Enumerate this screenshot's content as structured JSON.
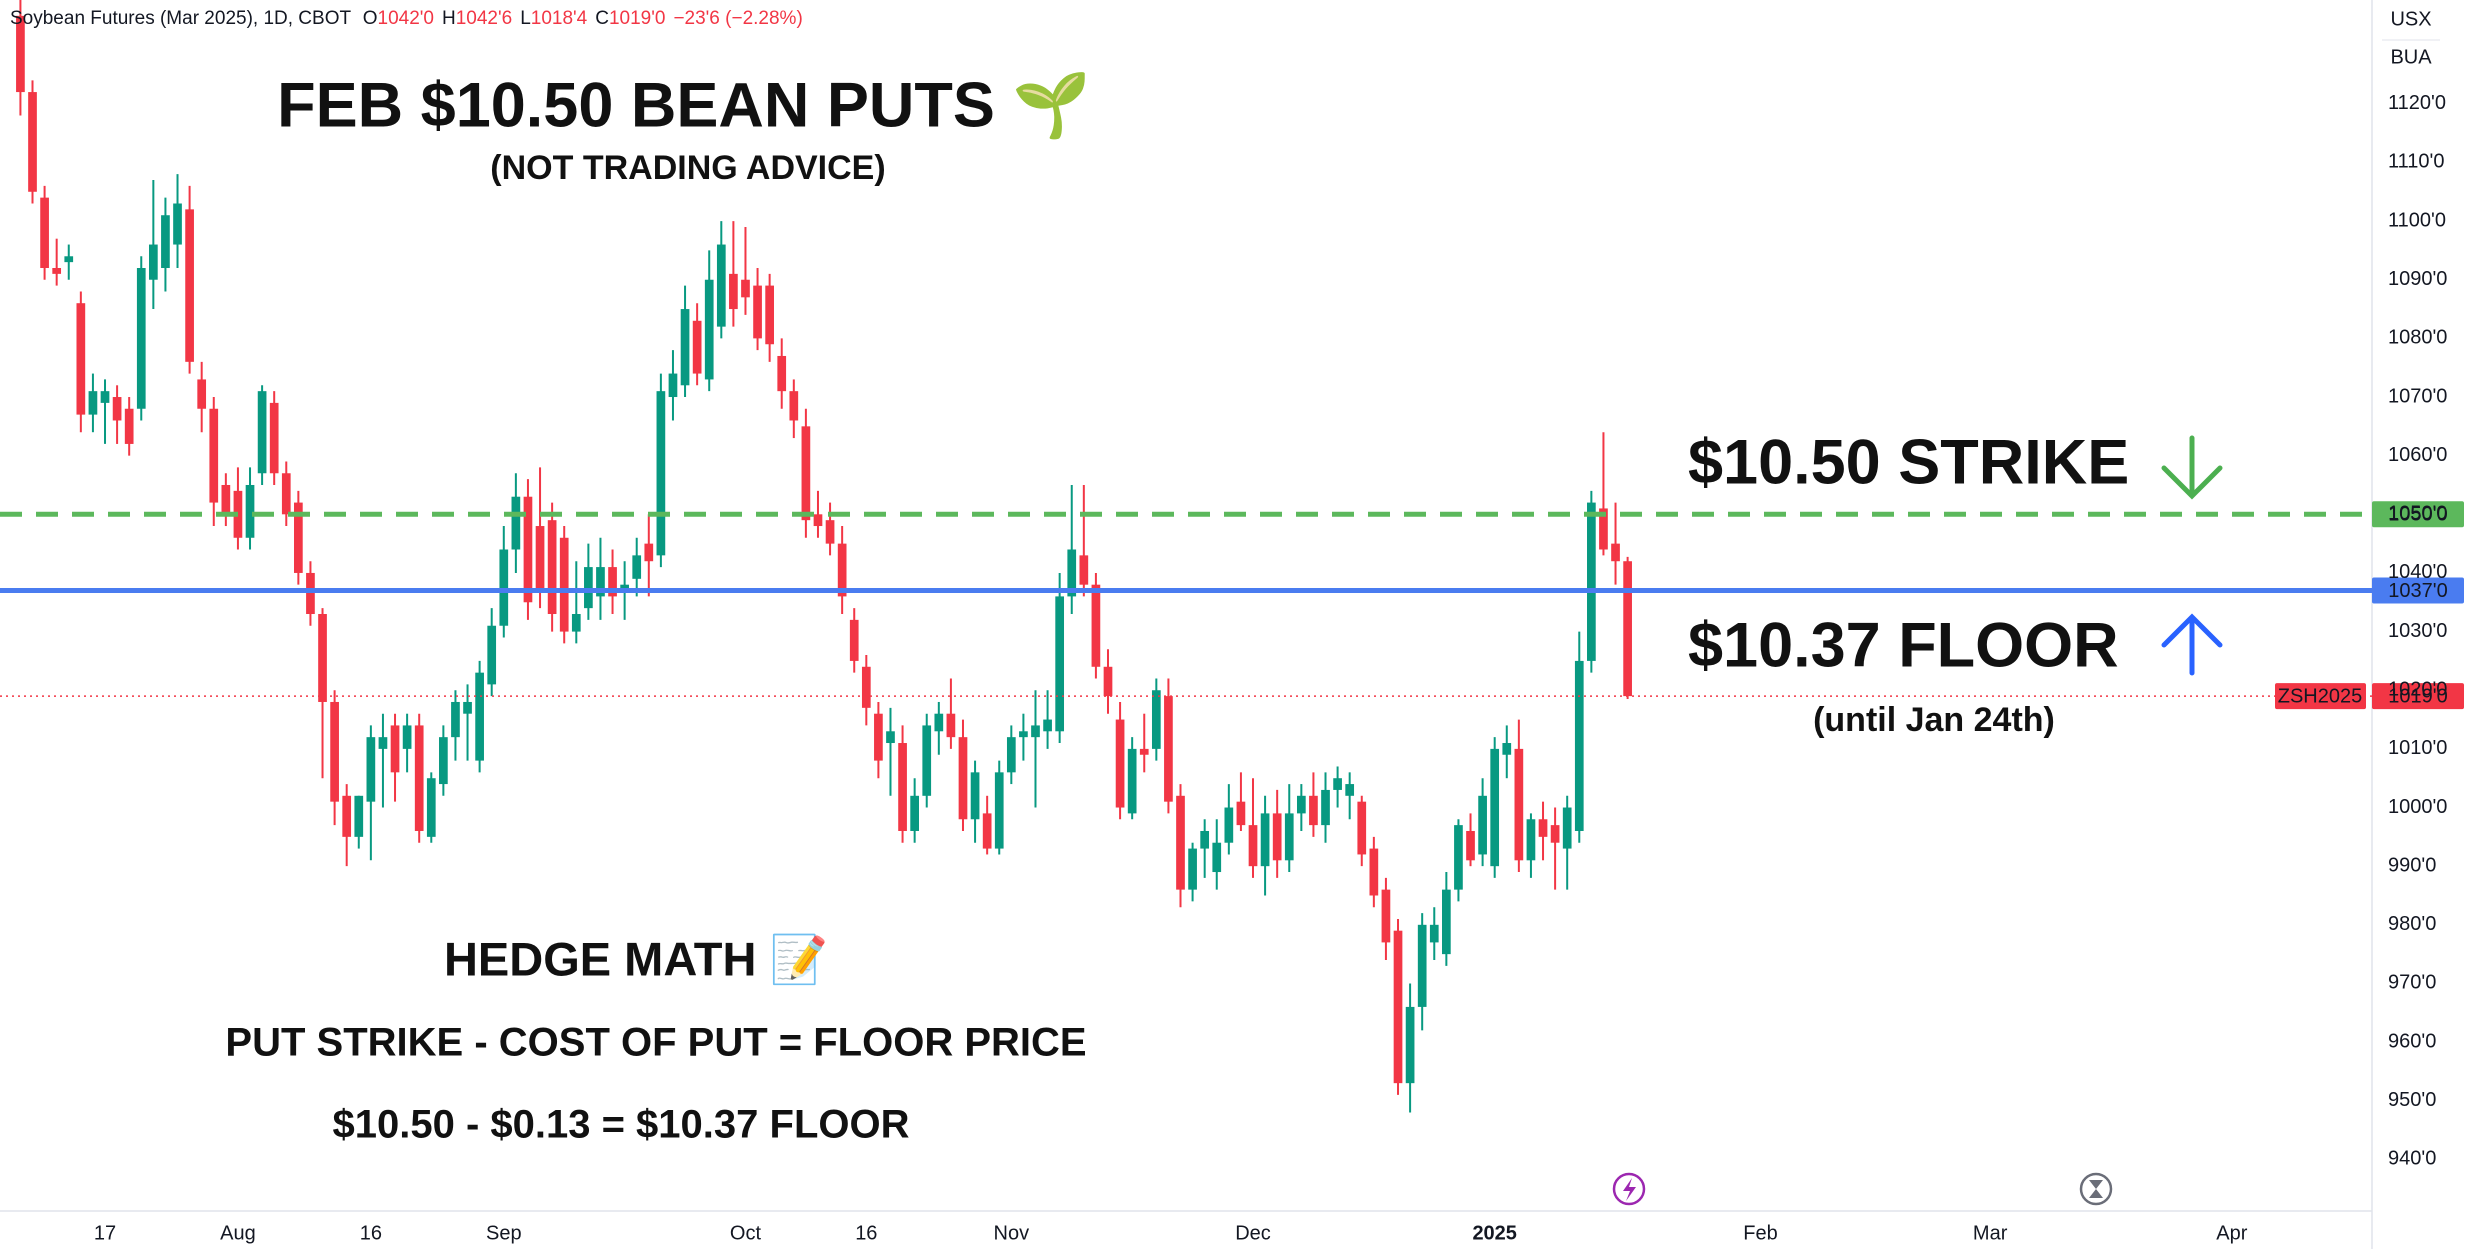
{
  "chart_data": {
    "type": "candlestick",
    "title": "Soybean Futures (Mar 2025), 1D, CBOT",
    "header": [
      {
        "label": "O",
        "value": "1042'0"
      },
      {
        "label": "H",
        "value": "1042'6"
      },
      {
        "label": "L",
        "value": "1018'4"
      },
      {
        "label": "C",
        "value": "1019'0"
      }
    ],
    "change": "−23'6 (−2.28%)",
    "currency": "USX",
    "unit": "BUA",
    "up_color": "#089981",
    "down_color": "#f23645",
    "ylim": [
      931.2,
      1137.7
    ],
    "yticks": [
      {
        "value": 940,
        "label": "940'0"
      },
      {
        "value": 950,
        "label": "950'0"
      },
      {
        "value": 960,
        "label": "960'0"
      },
      {
        "value": 970,
        "label": "970'0"
      },
      {
        "value": 980,
        "label": "980'0"
      },
      {
        "value": 990,
        "label": "990'0"
      },
      {
        "value": 1000,
        "label": "1000'0"
      },
      {
        "value": 1010,
        "label": "1010'0"
      },
      {
        "value": 1020,
        "label": "1020'0"
      },
      {
        "value": 1030,
        "label": "1030'0"
      },
      {
        "value": 1040,
        "label": "1040'0"
      },
      {
        "value": 1050,
        "label": "1050'0"
      },
      {
        "value": 1060,
        "label": "1060'0"
      },
      {
        "value": 1070,
        "label": "1070'0"
      },
      {
        "value": 1080,
        "label": "1080'0"
      },
      {
        "value": 1090,
        "label": "1090'0"
      },
      {
        "value": 1100,
        "label": "1100'0"
      },
      {
        "value": 1110,
        "label": "1110'0"
      },
      {
        "value": 1120,
        "label": "1120'0"
      }
    ],
    "xlim": [
      -1.69,
      194.6
    ],
    "xticks": [
      {
        "value": 7,
        "label": "17"
      },
      {
        "value": 18,
        "label": "Aug"
      },
      {
        "value": 29,
        "label": "16"
      },
      {
        "value": 40,
        "label": "Sep"
      },
      {
        "value": 60,
        "label": "Oct"
      },
      {
        "value": 70,
        "label": "16"
      },
      {
        "value": 82,
        "label": "Nov"
      },
      {
        "value": 102,
        "label": "Dec"
      },
      {
        "value": 122,
        "label": "2025"
      },
      {
        "value": 144,
        "label": "Feb"
      },
      {
        "value": 163,
        "label": "Mar"
      },
      {
        "value": 183,
        "label": "Apr"
      }
    ],
    "ohlc": [
      [
        1135,
        1140,
        1118,
        1122
      ],
      [
        1122,
        1124,
        1103,
        1105
      ],
      [
        1104,
        1106,
        1090,
        1092
      ],
      [
        1092,
        1097,
        1089,
        1091
      ],
      [
        1093,
        1096,
        1090,
        1094
      ],
      [
        1086,
        1088,
        1064,
        1067
      ],
      [
        1067,
        1074,
        1064,
        1071
      ],
      [
        1069,
        1073,
        1062,
        1071
      ],
      [
        1070,
        1072,
        1062,
        1066
      ],
      [
        1068,
        1070,
        1060,
        1062
      ],
      [
        1068,
        1094,
        1066,
        1092
      ],
      [
        1090,
        1107,
        1085,
        1096
      ],
      [
        1092,
        1104,
        1088,
        1101
      ],
      [
        1096,
        1108,
        1092,
        1103
      ],
      [
        1102,
        1106,
        1074,
        1076
      ],
      [
        1073,
        1076,
        1064,
        1068
      ],
      [
        1068,
        1070,
        1048,
        1052
      ],
      [
        1055,
        1057,
        1048,
        1050
      ],
      [
        1054,
        1058,
        1044,
        1046
      ],
      [
        1046,
        1058,
        1044,
        1055
      ],
      [
        1057,
        1072,
        1055,
        1071
      ],
      [
        1069,
        1071,
        1055,
        1057
      ],
      [
        1057,
        1059,
        1048,
        1050
      ],
      [
        1052,
        1054,
        1038,
        1040
      ],
      [
        1040,
        1042,
        1031,
        1033
      ],
      [
        1033,
        1034,
        1005,
        1018
      ],
      [
        1018,
        1020,
        997,
        1001
      ],
      [
        1002,
        1004,
        990,
        995
      ],
      [
        995,
        1002,
        993,
        1002
      ],
      [
        1001,
        1014,
        991,
        1012
      ],
      [
        1010,
        1016,
        1000,
        1012
      ],
      [
        1014,
        1016,
        1001,
        1006
      ],
      [
        1010,
        1016,
        1006,
        1014
      ],
      [
        1014,
        1016,
        994,
        996
      ],
      [
        995,
        1006,
        994,
        1005
      ],
      [
        1004,
        1014,
        1002,
        1012
      ],
      [
        1012,
        1020,
        1008,
        1018
      ],
      [
        1016,
        1021,
        1008,
        1018
      ],
      [
        1008,
        1025,
        1006,
        1023
      ],
      [
        1021,
        1034,
        1019,
        1031
      ],
      [
        1031,
        1048,
        1029,
        1044
      ],
      [
        1044,
        1057,
        1040,
        1053
      ],
      [
        1053,
        1056,
        1032,
        1035
      ],
      [
        1048,
        1058,
        1034,
        1037
      ],
      [
        1049,
        1052,
        1030,
        1033
      ],
      [
        1046,
        1048,
        1028,
        1030
      ],
      [
        1030,
        1042,
        1028,
        1033
      ],
      [
        1034,
        1045,
        1032,
        1041
      ],
      [
        1036,
        1046,
        1032,
        1041
      ],
      [
        1041,
        1044,
        1033,
        1036
      ],
      [
        1037,
        1042,
        1032,
        1038
      ],
      [
        1039,
        1046,
        1036,
        1043
      ],
      [
        1045,
        1050,
        1036,
        1042
      ],
      [
        1043,
        1074,
        1041,
        1071
      ],
      [
        1070,
        1078,
        1066,
        1074
      ],
      [
        1072,
        1089,
        1070,
        1085
      ],
      [
        1083,
        1086,
        1072,
        1074
      ],
      [
        1073,
        1095,
        1071,
        1090
      ],
      [
        1082,
        1100,
        1080,
        1096
      ],
      [
        1091,
        1100,
        1082,
        1085
      ],
      [
        1090,
        1099,
        1084,
        1087
      ],
      [
        1089,
        1092,
        1078,
        1080
      ],
      [
        1089,
        1091,
        1076,
        1079
      ],
      [
        1077,
        1080,
        1068,
        1071
      ],
      [
        1071,
        1073,
        1063,
        1066
      ],
      [
        1065,
        1068,
        1046,
        1049
      ],
      [
        1050,
        1054,
        1046,
        1048
      ],
      [
        1049,
        1052,
        1043,
        1045
      ],
      [
        1045,
        1048,
        1033,
        1036
      ],
      [
        1032,
        1034,
        1023,
        1025
      ],
      [
        1024,
        1026,
        1014,
        1017
      ],
      [
        1016,
        1018,
        1005,
        1008
      ],
      [
        1011,
        1017,
        1002,
        1013
      ],
      [
        1011,
        1014,
        994,
        996
      ],
      [
        996,
        1005,
        994,
        1002
      ],
      [
        1002,
        1016,
        1000,
        1014
      ],
      [
        1013,
        1018,
        1009,
        1016
      ],
      [
        1016,
        1022,
        1010,
        1012
      ],
      [
        1012,
        1015,
        996,
        998
      ],
      [
        998,
        1008,
        994,
        1006
      ],
      [
        999,
        1002,
        992,
        993
      ],
      [
        993,
        1008,
        992,
        1006
      ],
      [
        1006,
        1014,
        1004,
        1012
      ],
      [
        1012,
        1016,
        1008,
        1013
      ],
      [
        1012,
        1020,
        1000,
        1014
      ],
      [
        1013,
        1020,
        1010,
        1015
      ],
      [
        1013,
        1040,
        1011,
        1036
      ],
      [
        1036,
        1055,
        1033,
        1044
      ],
      [
        1043,
        1055,
        1036,
        1038
      ],
      [
        1038,
        1040,
        1022,
        1024
      ],
      [
        1024,
        1027,
        1016,
        1019
      ],
      [
        1015,
        1018,
        998,
        1000
      ],
      [
        999,
        1012,
        998,
        1010
      ],
      [
        1010,
        1016,
        1006,
        1009
      ],
      [
        1010,
        1022,
        1008,
        1020
      ],
      [
        1019,
        1022,
        999,
        1001
      ],
      [
        1002,
        1004,
        983,
        986
      ],
      [
        986,
        994,
        984,
        993
      ],
      [
        993,
        998,
        988,
        996
      ],
      [
        989,
        998,
        986,
        994
      ],
      [
        994,
        1004,
        992,
        1000
      ],
      [
        1001,
        1006,
        996,
        997
      ],
      [
        997,
        1005,
        988,
        990
      ],
      [
        990,
        1002,
        985,
        999
      ],
      [
        999,
        1003,
        988,
        991
      ],
      [
        991,
        1004,
        989,
        999
      ],
      [
        999,
        1004,
        996,
        1002
      ],
      [
        1002,
        1006,
        995,
        997
      ],
      [
        997,
        1006,
        994,
        1003
      ],
      [
        1003,
        1007,
        1000,
        1005
      ],
      [
        1002,
        1006,
        998,
        1004
      ],
      [
        1001,
        1002,
        990,
        992
      ],
      [
        993,
        995,
        983,
        985
      ],
      [
        986,
        988,
        974,
        977
      ],
      [
        979,
        981,
        951,
        953
      ],
      [
        953,
        970,
        948,
        966
      ],
      [
        966,
        982,
        962,
        980
      ],
      [
        977,
        983,
        974,
        980
      ],
      [
        975,
        989,
        973,
        986
      ],
      [
        986,
        998,
        984,
        997
      ],
      [
        996,
        999,
        990,
        991
      ],
      [
        992,
        1005,
        990,
        1002
      ],
      [
        990,
        1012,
        988,
        1010
      ],
      [
        1009,
        1014,
        1005,
        1011
      ],
      [
        1010,
        1015,
        989,
        991
      ],
      [
        991,
        999,
        988,
        998
      ],
      [
        998,
        1001,
        991,
        995
      ],
      [
        997,
        1000,
        986,
        994
      ],
      [
        993,
        1002,
        986,
        1000
      ],
      [
        996,
        1030,
        994,
        1025
      ],
      [
        1025,
        1054,
        1023,
        1052
      ],
      [
        1051,
        1064,
        1043,
        1044
      ],
      [
        1045,
        1052,
        1038,
        1042
      ],
      [
        1042,
        1042.75,
        1018.5,
        1019
      ]
    ],
    "price_lines": [
      {
        "value": 1050,
        "label": "1050'0",
        "color": "#5cb85c",
        "style": "dashed"
      },
      {
        "value": 1037,
        "label": "1037'0",
        "color": "#4a7cf0",
        "style": "solid"
      },
      {
        "value": 1019,
        "label": "1019'0",
        "symbol": "ZSH2025",
        "color": "#f23645",
        "style": "dotted"
      }
    ],
    "annotations": {
      "title": "FEB $10.50 BEAN PUTS 🌱",
      "subtitle": "(NOT TRADING ADVICE)",
      "strike": "$10.50 STRIKE",
      "floor": "$10.37 FLOOR",
      "floor_note": "(until Jan 24th)",
      "hedge_title": "HEDGE MATH 📝",
      "hedge_formula": "PUT STRIKE - COST OF PUT = FLOOR PRICE",
      "hedge_example": "$10.50 - $0.13 = $10.37 FLOOR"
    }
  }
}
